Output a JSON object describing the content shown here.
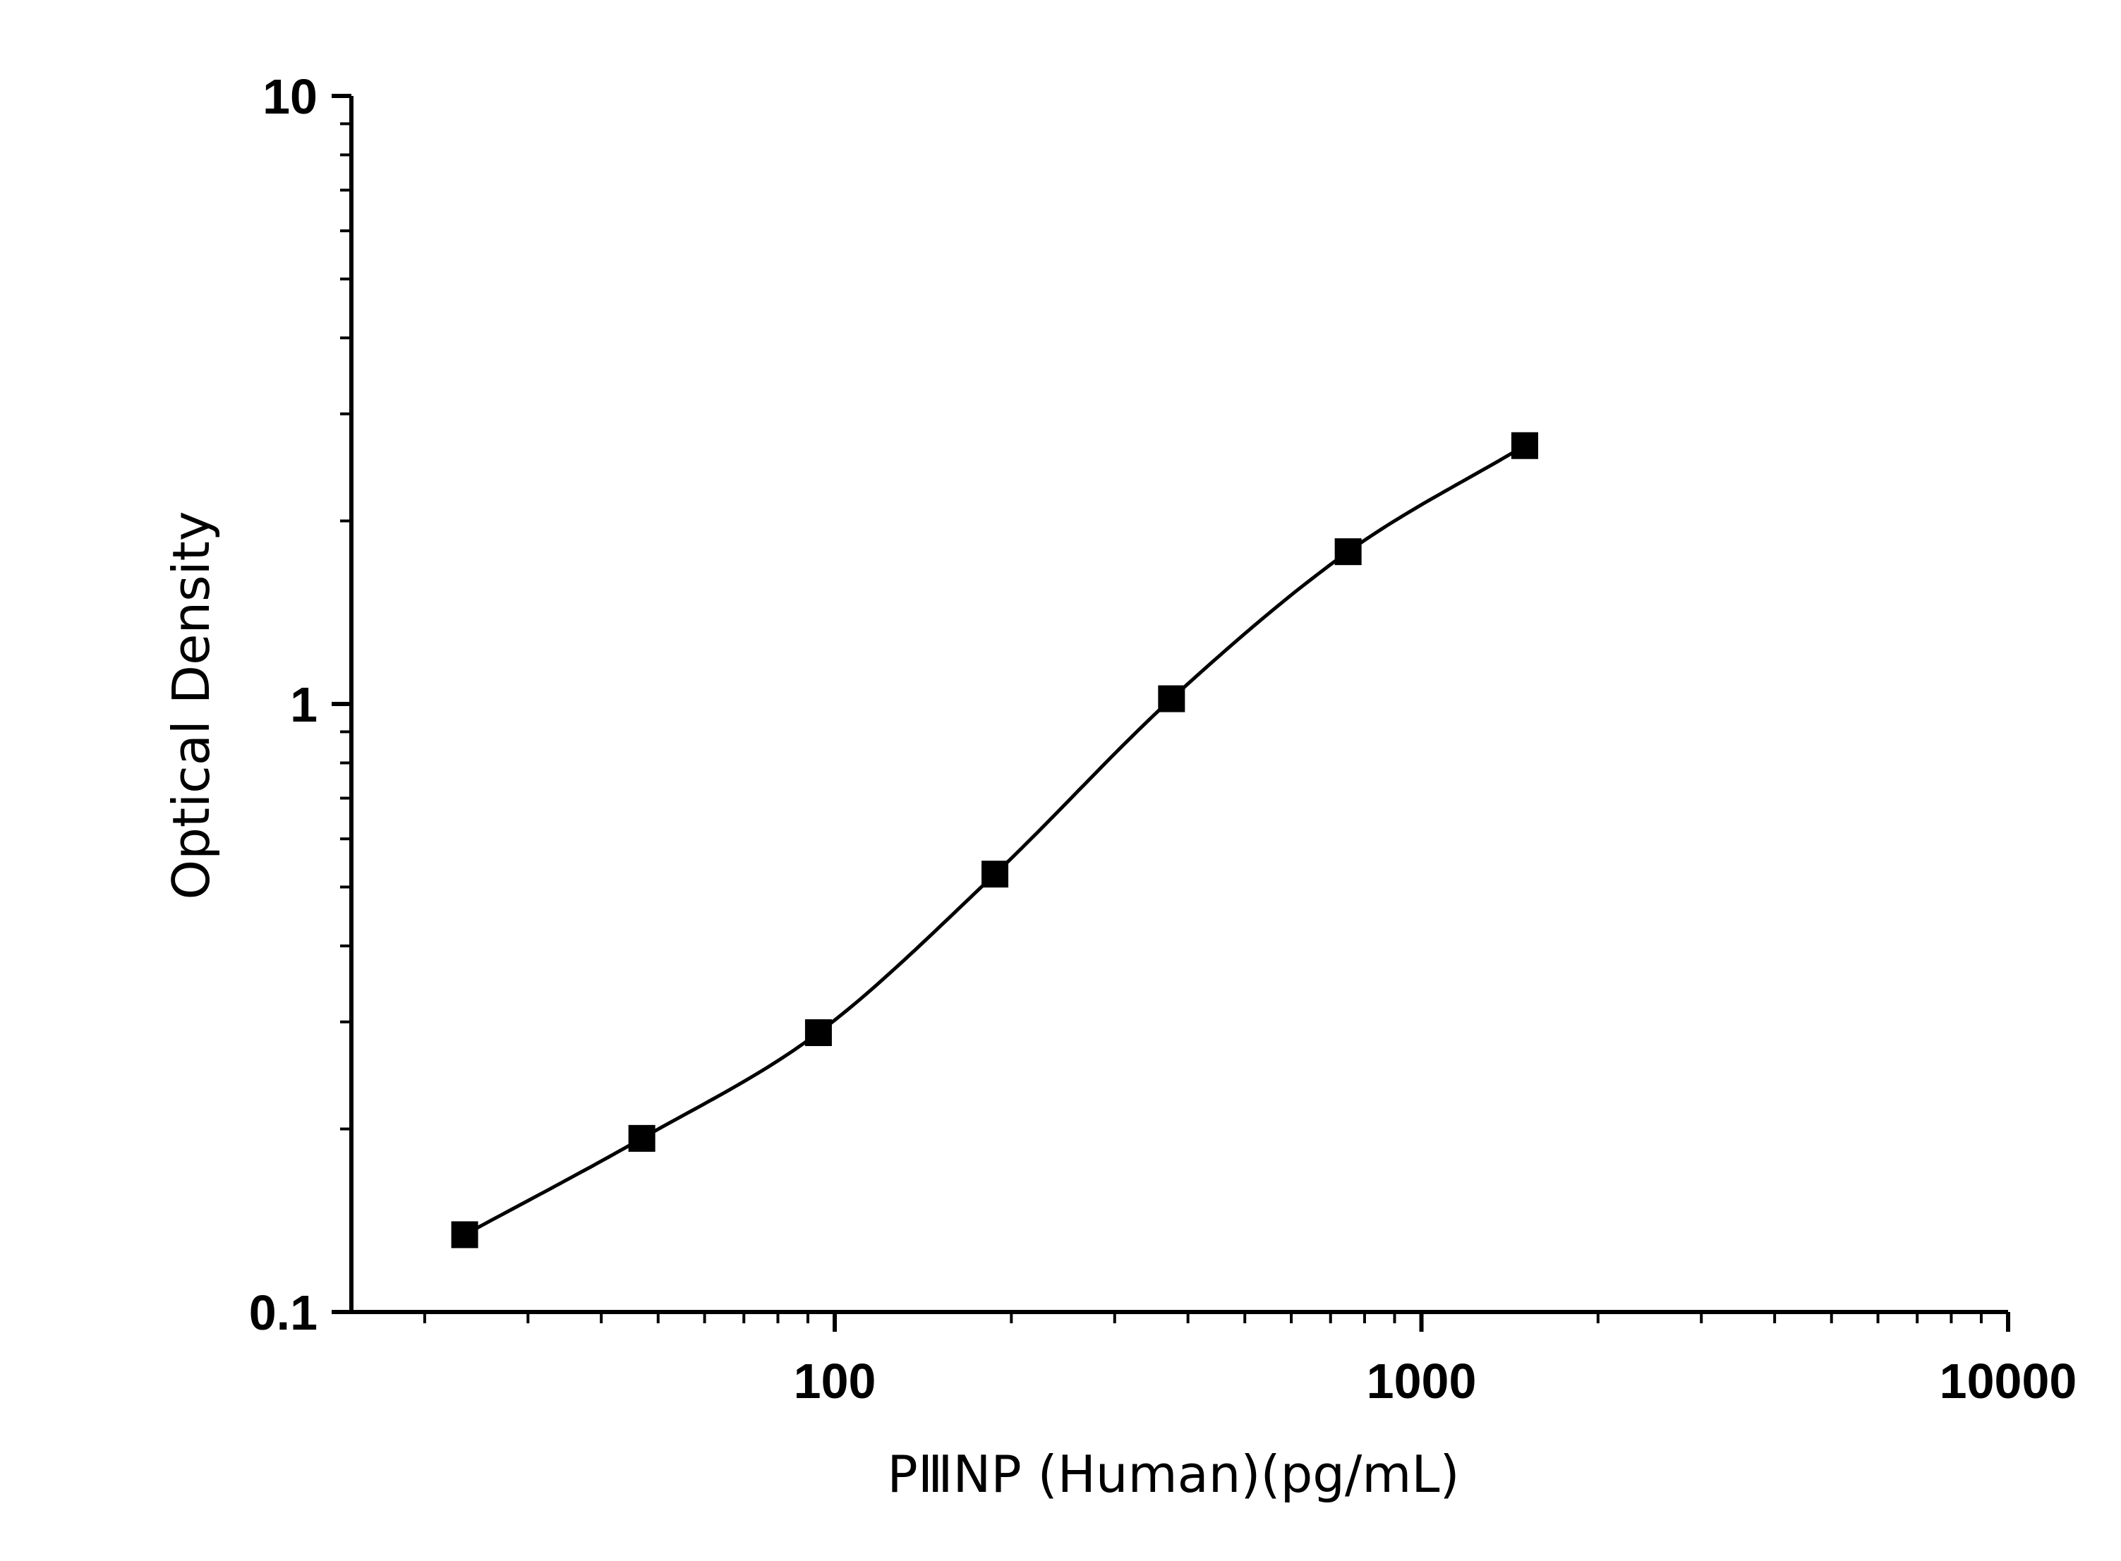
{
  "chart_data": {
    "type": "scatter",
    "xlabel": "PⅢNP (Human)(pg/mL)",
    "ylabel": "Optical Density",
    "xscale": "log",
    "yscale": "log",
    "xlim": [
      15,
      10000
    ],
    "ylim": [
      0.1,
      10
    ],
    "x_ticks": [
      {
        "value": 100,
        "label": "100"
      },
      {
        "value": 1000,
        "label": "1000"
      },
      {
        "value": 10000,
        "label": "10000"
      }
    ],
    "y_ticks": [
      {
        "value": 0.1,
        "label": "0.1"
      },
      {
        "value": 1,
        "label": "1"
      },
      {
        "value": 10,
        "label": "10"
      }
    ],
    "grid": false,
    "series": [
      {
        "marker": "square",
        "color": "#000000",
        "points": [
          {
            "x": 23.4,
            "y": 0.134
          },
          {
            "x": 46.9,
            "y": 0.193
          },
          {
            "x": 93.8,
            "y": 0.288
          },
          {
            "x": 187.5,
            "y": 0.525
          },
          {
            "x": 375,
            "y": 1.02
          },
          {
            "x": 750,
            "y": 1.78
          },
          {
            "x": 1500,
            "y": 2.66
          }
        ]
      }
    ],
    "fit_curve": {
      "color": "#000000",
      "x_range": [
        23.4,
        1500
      ]
    }
  }
}
